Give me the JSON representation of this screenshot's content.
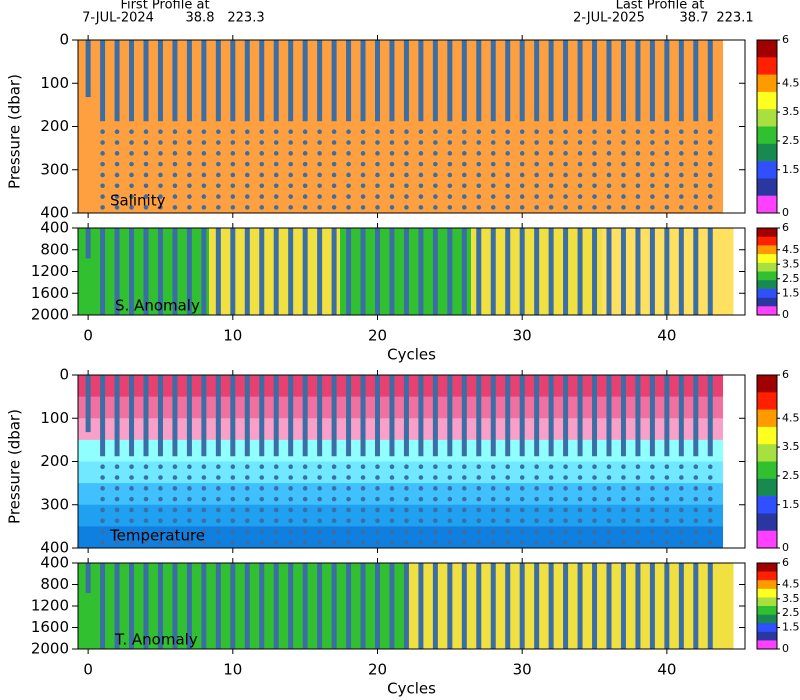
{
  "header": {
    "first_label": "First Profile at",
    "first_date": "7-JUL-2024",
    "first_lat": 38.8,
    "first_lon": 223.3,
    "last_label": "Last Profile at",
    "last_date": "2-JUL-2025",
    "last_lat": 38.7,
    "last_lon": 223.1
  },
  "profile_cycles": [
    0,
    1,
    2,
    3,
    4,
    5,
    6,
    7,
    8,
    9,
    10,
    11,
    12,
    13,
    14,
    15,
    16,
    17,
    18,
    19,
    20,
    21,
    22,
    23,
    24,
    25,
    26,
    27,
    28,
    29,
    30,
    31,
    32,
    33,
    34,
    35,
    36,
    37,
    38,
    39,
    40,
    41,
    42,
    43
  ],
  "profile_color": "#3b6ea5",
  "chart_data": [
    {
      "type": "section",
      "label": "Salinity",
      "ylabel": "Pressure (dbar)",
      "ylim": [
        0,
        400
      ],
      "yticks": [
        0,
        100,
        200,
        300,
        400
      ],
      "xlim": [
        -0.7,
        45.4
      ],
      "xticks": [
        0,
        10,
        20,
        30,
        40
      ],
      "fill": [
        "#ffa040"
      ],
      "fill_axis": "y",
      "colorbar": {
        "clim": [
          0,
          6
        ],
        "ticks": [
          0,
          1.5,
          2.5,
          3.5,
          4.5,
          6
        ],
        "colors": [
          "#a00000",
          "#ff2000",
          "#ff9a00",
          "#ffff20",
          "#a8e040",
          "#30c030",
          "#188a50",
          "#3050ff",
          "#2838a0",
          "#ff40ff"
        ]
      }
    },
    {
      "type": "section",
      "label": "S. Anomaly",
      "ylim": [
        400,
        2000
      ],
      "yticks": [
        400,
        800,
        1200,
        1600,
        2000
      ],
      "xlim": [
        -0.7,
        45.4
      ],
      "xticks": [
        0,
        10,
        20,
        30,
        40
      ],
      "xlabel": "Cycles",
      "fill": [
        "#30c030",
        "#f0e040",
        "#30c030",
        "#f0e040",
        "#ffe060"
      ],
      "fill_axis": "x",
      "colorbar": {
        "clim": [
          0,
          6
        ],
        "ticks": [
          0,
          1.5,
          2.5,
          3.5,
          4.5,
          6
        ],
        "colors": [
          "#a00000",
          "#ff2000",
          "#ff9a00",
          "#ffff20",
          "#a8e040",
          "#30c030",
          "#188a50",
          "#3050ff",
          "#2838a0",
          "#ff40ff"
        ]
      }
    },
    {
      "type": "section",
      "label": "Temperature",
      "ylabel": "Pressure (dbar)",
      "ylim": [
        0,
        400
      ],
      "yticks": [
        0,
        100,
        200,
        300,
        400
      ],
      "xlim": [
        -0.7,
        45.4
      ],
      "xticks": [
        0,
        10,
        20,
        30,
        40
      ],
      "fill": [
        "#e84070",
        "#f070a0",
        "#f8a0c8",
        "#90ffff",
        "#70e8ff",
        "#40c0ff",
        "#20a0f0",
        "#1080e0"
      ],
      "fill_axis": "y",
      "colorbar": {
        "clim": [
          0,
          6
        ],
        "ticks": [
          0,
          1.5,
          2.5,
          3.5,
          4.5,
          6
        ],
        "colors": [
          "#a00000",
          "#ff2000",
          "#ff9a00",
          "#ffff20",
          "#a8e040",
          "#30c030",
          "#188a50",
          "#3050ff",
          "#2838a0",
          "#ff40ff"
        ]
      }
    },
    {
      "type": "section",
      "label": "T. Anomaly",
      "ylim": [
        400,
        2000
      ],
      "yticks": [
        400,
        800,
        1200,
        1600,
        2000
      ],
      "xlim": [
        -0.7,
        45.4
      ],
      "xticks": [
        0,
        10,
        20,
        30,
        40
      ],
      "xlabel": "Cycles",
      "fill": [
        "#30c030",
        "#30c030",
        "#f0e040",
        "#f0e040"
      ],
      "fill_axis": "x",
      "colorbar": {
        "clim": [
          0,
          6
        ],
        "ticks": [
          0,
          1.5,
          2.5,
          3.5,
          4.5,
          6
        ],
        "colors": [
          "#a00000",
          "#ff2000",
          "#ff9a00",
          "#ffff20",
          "#a8e040",
          "#30c030",
          "#188a50",
          "#3050ff",
          "#2838a0",
          "#ff40ff"
        ]
      }
    }
  ]
}
